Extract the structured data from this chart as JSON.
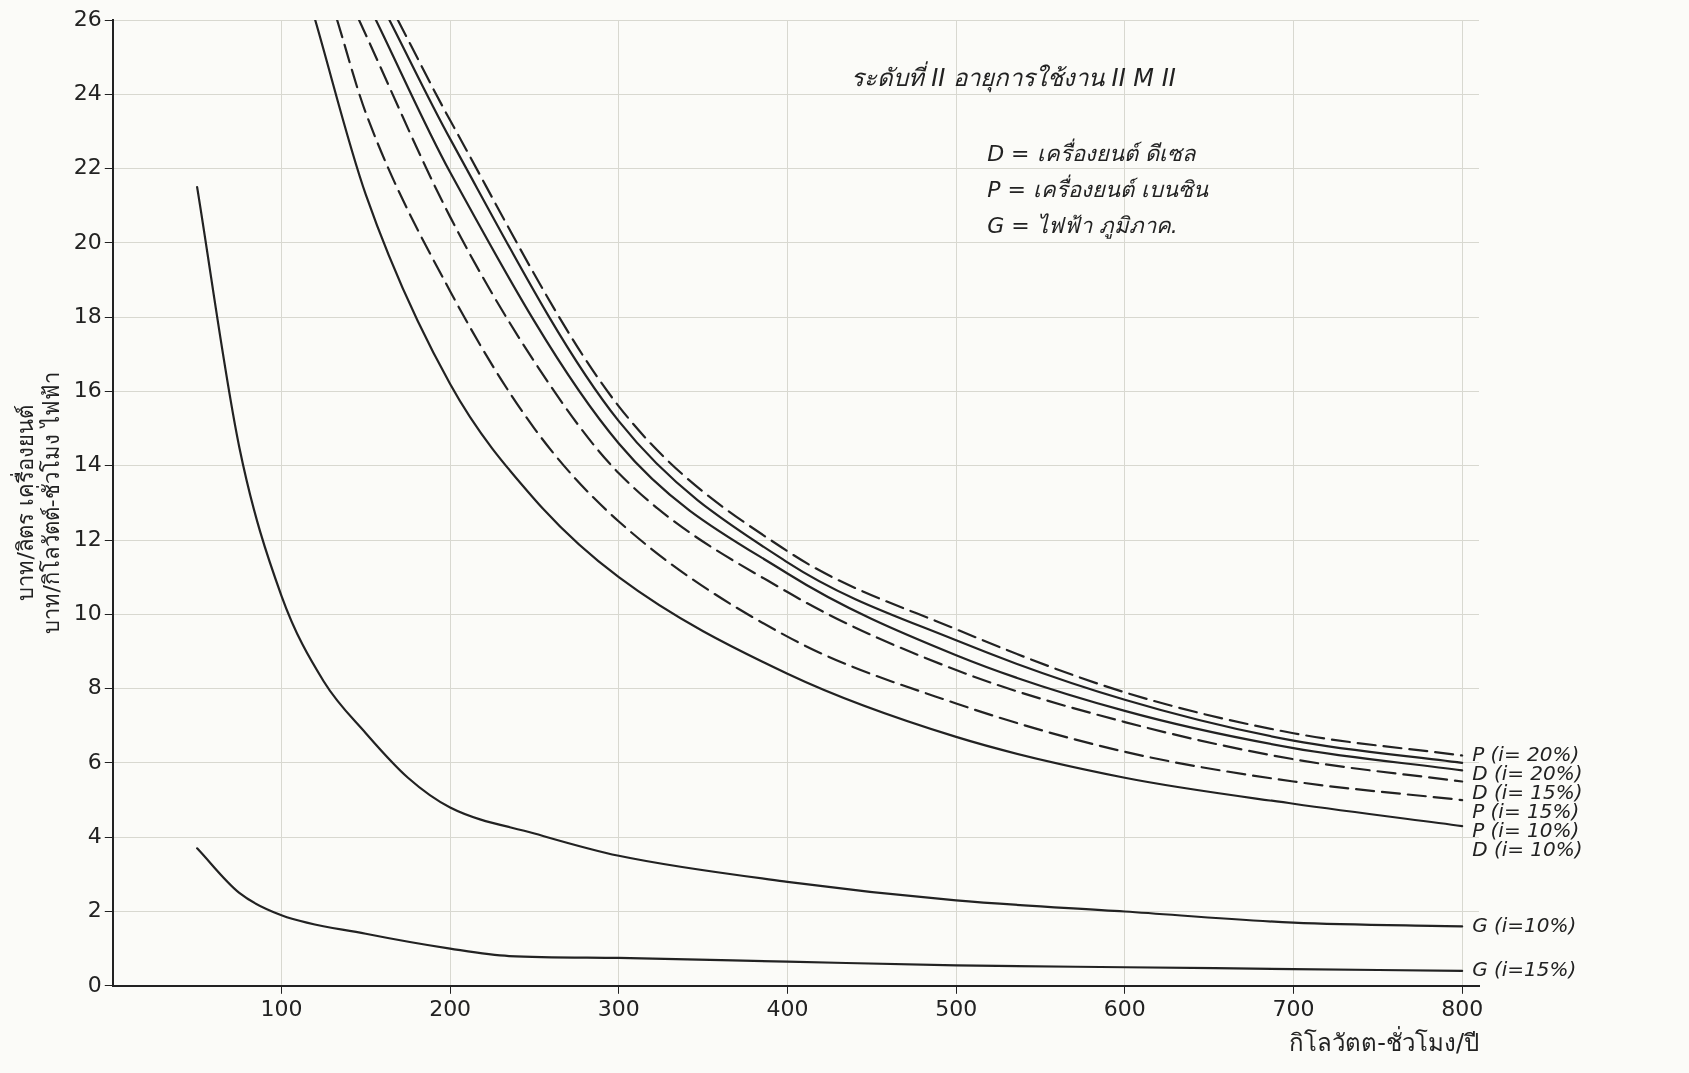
{
  "chart_data": {
    "type": "line",
    "title": "ระดับที่ II อายุการใช้งาน II M II",
    "xlabel": "กิโลวัตต-ชั่วโมง/ปี",
    "ylabel": "บาท/ลิตร เครื่องยนต์\nบาท/กิโลวัตต์-ชั่วโมง ไฟฟ้า",
    "annotations": [
      "D = เครื่องยนต์ ดีเซล",
      "P = เครื่องยนต์ เบนซิน",
      "G = ไฟฟ้า ภูมิภาค."
    ],
    "xlim": [
      0,
      810
    ],
    "xticks": [
      100,
      200,
      300,
      400,
      500,
      600,
      700,
      800
    ],
    "ylim": [
      0,
      26
    ],
    "yticks": [
      0,
      2,
      4,
      6,
      8,
      10,
      12,
      14,
      16,
      18,
      20,
      22,
      24,
      26
    ],
    "grid": true,
    "marker": "none",
    "series": [
      {
        "name": "P (i= 20%)",
        "color": "#222222",
        "line_style": "dashed",
        "x": [
          169,
          200,
          300,
          400,
          500,
          600,
          700,
          800
        ],
        "values": [
          26,
          23.3,
          15.6,
          11.7,
          9.6,
          7.9,
          6.8,
          6.2
        ]
      },
      {
        "name": "D (i= 20%)",
        "color": "#222222",
        "line_style": "solid",
        "x": [
          164,
          200,
          300,
          400,
          500,
          600,
          700,
          800
        ],
        "values": [
          26,
          22.8,
          15.2,
          11.4,
          9.3,
          7.7,
          6.6,
          6.0
        ]
      },
      {
        "name": "D (i= 15%)",
        "color": "#222222",
        "line_style": "solid",
        "x": [
          156,
          200,
          300,
          400,
          500,
          600,
          700,
          800
        ],
        "values": [
          26,
          21.9,
          14.6,
          11.1,
          8.9,
          7.4,
          6.4,
          5.8
        ]
      },
      {
        "name": "P (i= 15%)",
        "color": "#222222",
        "line_style": "dashed",
        "x": [
          146,
          200,
          250,
          300,
          400,
          500,
          600,
          700,
          800
        ],
        "values": [
          26,
          20.7,
          16.8,
          13.8,
          10.6,
          8.5,
          7.1,
          6.1,
          5.5
        ]
      },
      {
        "name": "P (i= 10%)",
        "color": "#222222",
        "line_style": "dashed",
        "x": [
          133,
          150,
          200,
          250,
          300,
          400,
          500,
          600,
          700,
          800
        ],
        "values": [
          26,
          23.5,
          18.7,
          15.0,
          12.5,
          9.4,
          7.6,
          6.3,
          5.5,
          5.0
        ]
      },
      {
        "name": "D (i= 10%)",
        "color": "#222222",
        "line_style": "solid",
        "x": [
          120,
          150,
          200,
          250,
          300,
          400,
          500,
          600,
          700,
          800
        ],
        "values": [
          26,
          21.3,
          16.2,
          13.1,
          11.0,
          8.4,
          6.7,
          5.6,
          4.9,
          4.3
        ]
      },
      {
        "name": "G (i=10%)",
        "color": "#222222",
        "line_style": "solid",
        "x": [
          50,
          75,
          100,
          125,
          150,
          175,
          200,
          250,
          300,
          400,
          500,
          600,
          700,
          800
        ],
        "values": [
          21.5,
          14.5,
          10.5,
          8.2,
          6.8,
          5.6,
          4.8,
          4.1,
          3.5,
          2.8,
          2.3,
          2.0,
          1.7,
          1.6
        ]
      },
      {
        "name": "G (i=15%)",
        "color": "#222222",
        "line_style": "solid",
        "x": [
          50,
          75,
          100,
          150,
          200,
          235,
          300,
          400,
          500,
          600,
          700,
          800
        ],
        "values": [
          3.7,
          2.5,
          1.9,
          1.4,
          1.0,
          0.8,
          0.75,
          0.65,
          0.55,
          0.5,
          0.45,
          0.4
        ]
      }
    ]
  }
}
